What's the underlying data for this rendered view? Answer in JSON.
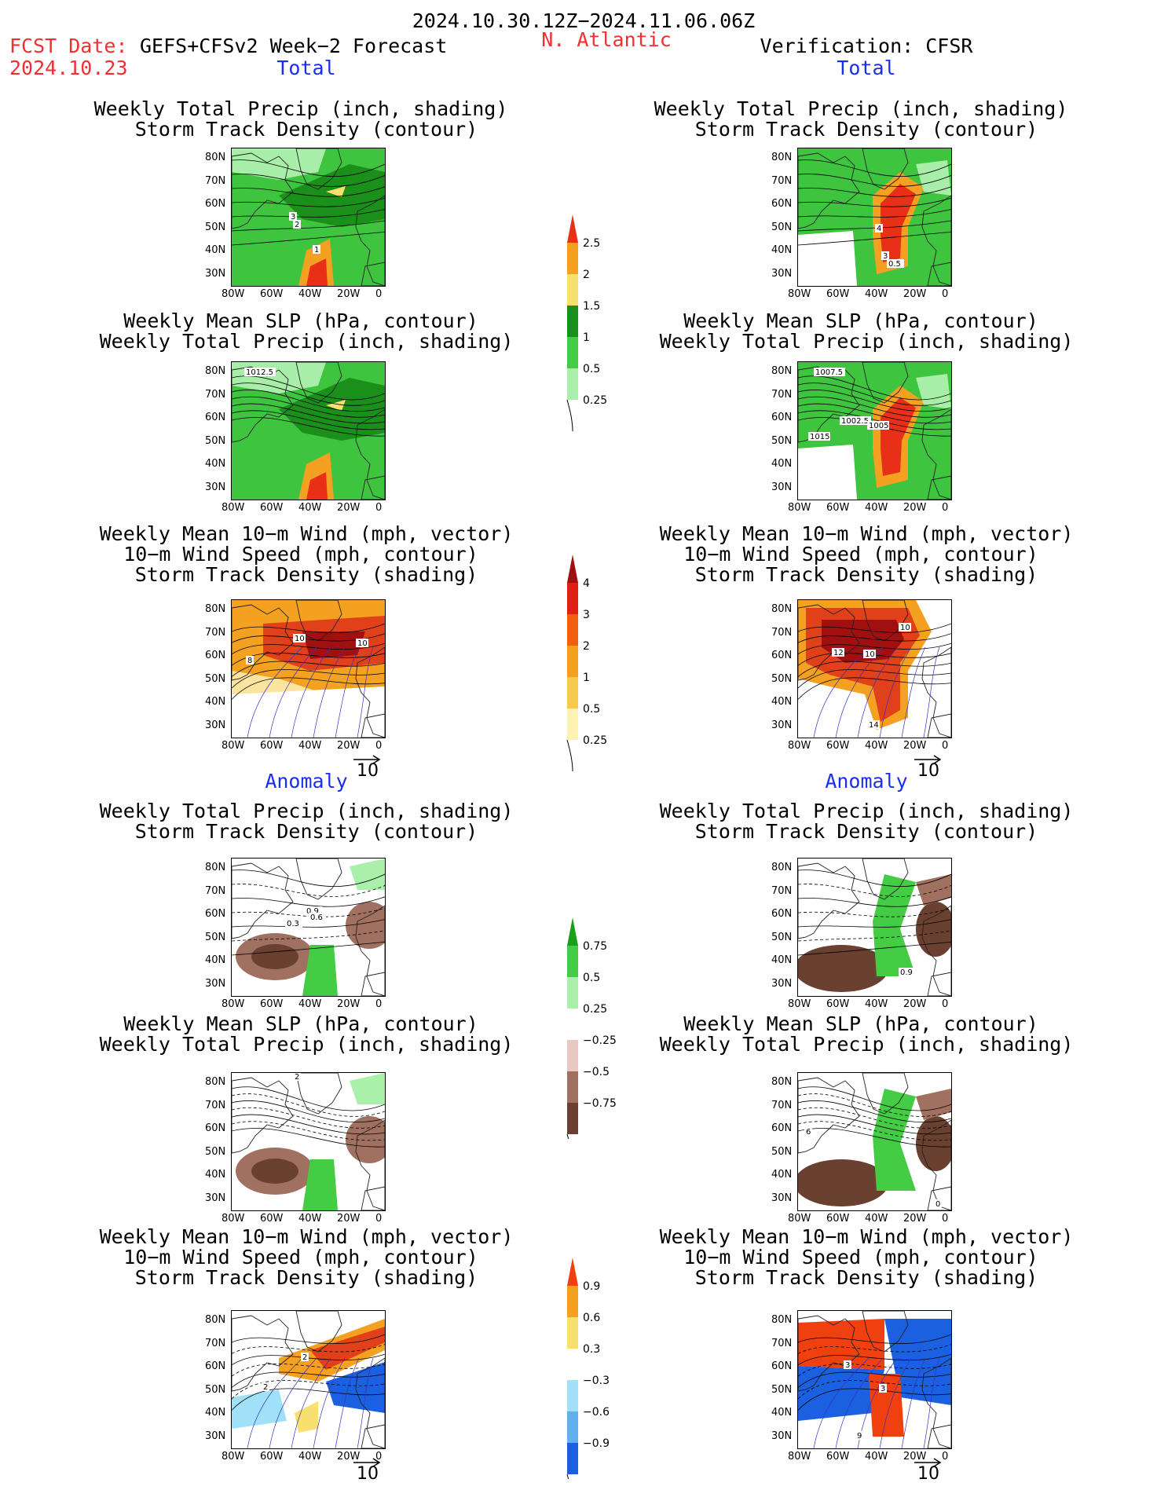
{
  "header": {
    "period": "2024.10.30.12Z−2024.11.06.06Z",
    "fcst_label": "FCST Date:",
    "fcst_model": "GEFS+CFSv2 Week−2 Forecast",
    "fcst_date": "2024.10.23",
    "region": "N. Atlantic",
    "verification": "Verification: CFSR"
  },
  "sections": {
    "total": "Total",
    "anomaly": "Anomaly"
  },
  "titles": {
    "precip_track": [
      "Weekly Total Precip (inch, shading)",
      "Storm Track Density (contour)"
    ],
    "slp_precip": [
      "Weekly Mean SLP (hPa, contour)",
      "Weekly Total Precip (inch, shading)"
    ],
    "wind": [
      "Weekly Mean 10−m Wind (mph, vector)",
      "10−m Wind Speed (mph, contour)",
      "Storm Track Density (shading)"
    ]
  },
  "axes": {
    "lat": [
      "80N",
      "70N",
      "60N",
      "50N",
      "40N",
      "30N"
    ],
    "lon": [
      "80W",
      "60W",
      "40W",
      "20W",
      "0"
    ]
  },
  "vector_ref": "10",
  "colorbars": {
    "precip_total": {
      "labels": [
        "2.5",
        "2",
        "1.5",
        "1",
        "0.5",
        "0.25"
      ],
      "colors": [
        "#e83018",
        "#f4a020",
        "#f8e070",
        "#1a8f1a",
        "#44cc44",
        "#aaf0aa"
      ]
    },
    "track_total": {
      "labels": [
        "4",
        "3",
        "2",
        "1",
        "0.5",
        "0.25"
      ],
      "colors": [
        "#a01010",
        "#e02010",
        "#f06010",
        "#f4a020",
        "#f8c850",
        "#fdf2b0"
      ]
    },
    "precip_anom": {
      "labels": [
        "0.75",
        "0.5",
        "0.25",
        "−0.25",
        "−0.5",
        "−0.75"
      ],
      "colors": [
        "#1a9f1a",
        "#44cc44",
        "#aaf0aa",
        "#ffffff",
        "#e8c8c0",
        "#a07060",
        "#6a4030"
      ]
    },
    "track_anom": {
      "labels": [
        "0.9",
        "0.6",
        "0.3",
        "−0.3",
        "−0.6",
        "−0.9"
      ],
      "colors": [
        "#f04010",
        "#f4a020",
        "#f8e070",
        "#ffffff",
        "#a0e0f8",
        "#60b0f0",
        "#1a60e0"
      ]
    }
  },
  "map_labels": {
    "fc_pt": [
      "3",
      "2",
      "1"
    ],
    "ob_pt": [
      "4",
      "3",
      "0.5"
    ],
    "fc_slp": [
      "1012.5"
    ],
    "ob_slp": [
      "1007.5",
      "1002.5",
      "1005",
      "1015"
    ],
    "fc_wind": [
      "10",
      "10",
      "8"
    ],
    "ob_wind": [
      "10",
      "12",
      "10",
      "14"
    ],
    "fc_pta": [
      "0.9",
      "0.6",
      "0.3"
    ],
    "ob_pta": [
      "0.9"
    ],
    "fc_slpa": [
      "2"
    ],
    "ob_slpa": [
      "6",
      "0"
    ],
    "fc_winda": [
      "2",
      "2"
    ],
    "ob_winda": [
      "3",
      "3",
      "9"
    ]
  }
}
